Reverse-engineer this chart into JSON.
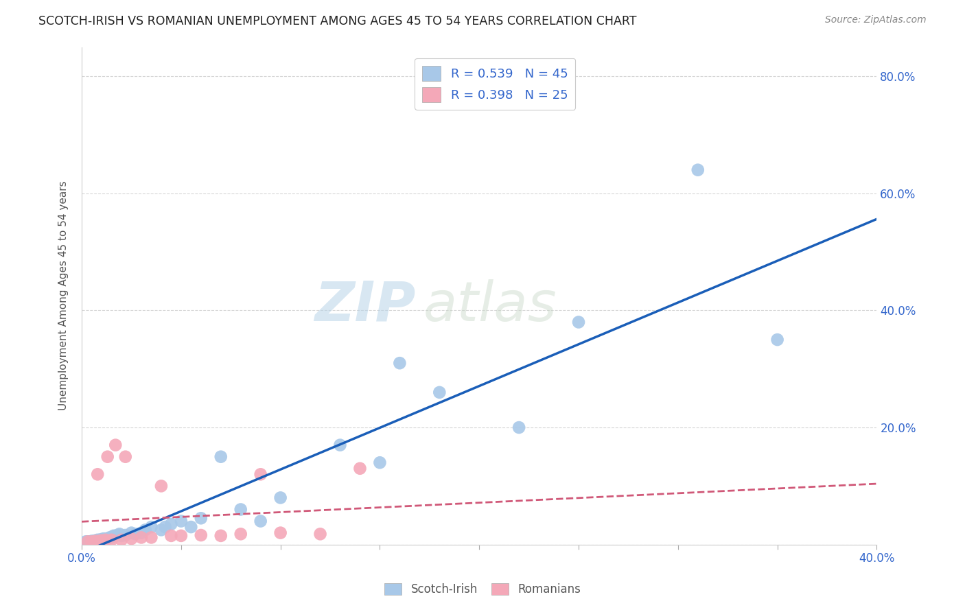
{
  "title": "SCOTCH-IRISH VS ROMANIAN UNEMPLOYMENT AMONG AGES 45 TO 54 YEARS CORRELATION CHART",
  "source": "Source: ZipAtlas.com",
  "ylabel": "Unemployment Among Ages 45 to 54 years",
  "xlim": [
    0.0,
    0.4
  ],
  "ylim": [
    0.0,
    0.85
  ],
  "yticks": [
    0.0,
    0.2,
    0.4,
    0.6,
    0.8
  ],
  "ytick_labels": [
    "",
    "20.0%",
    "40.0%",
    "60.0%",
    "80.0%"
  ],
  "xticks": [
    0.0,
    0.05,
    0.1,
    0.15,
    0.2,
    0.25,
    0.3,
    0.35,
    0.4
  ],
  "xtick_labels": [
    "0.0%",
    "",
    "",
    "",
    "",
    "",
    "",
    "",
    "40.0%"
  ],
  "scotch_irish_color": "#a8c8e8",
  "scotch_irish_line_color": "#1a5eb8",
  "romanian_color": "#f4a8b8",
  "romanian_line_color": "#d05878",
  "scotch_irish_R": 0.539,
  "scotch_irish_N": 45,
  "romanian_R": 0.398,
  "romanian_N": 25,
  "legend_text_color": "#3366cc",
  "watermark": "ZIPatlas",
  "scotch_irish_x": [
    0.002,
    0.003,
    0.004,
    0.005,
    0.006,
    0.007,
    0.008,
    0.008,
    0.009,
    0.01,
    0.01,
    0.011,
    0.012,
    0.013,
    0.014,
    0.015,
    0.016,
    0.017,
    0.018,
    0.019,
    0.02,
    0.022,
    0.025,
    0.027,
    0.03,
    0.032,
    0.035,
    0.04,
    0.042,
    0.045,
    0.05,
    0.055,
    0.06,
    0.07,
    0.08,
    0.09,
    0.1,
    0.13,
    0.15,
    0.16,
    0.18,
    0.22,
    0.25,
    0.31,
    0.35
  ],
  "scotch_irish_y": [
    0.005,
    0.005,
    0.005,
    0.006,
    0.006,
    0.007,
    0.007,
    0.008,
    0.008,
    0.005,
    0.009,
    0.01,
    0.01,
    0.01,
    0.012,
    0.012,
    0.015,
    0.015,
    0.016,
    0.018,
    0.015,
    0.016,
    0.02,
    0.018,
    0.02,
    0.025,
    0.03,
    0.025,
    0.03,
    0.035,
    0.04,
    0.03,
    0.045,
    0.15,
    0.06,
    0.04,
    0.08,
    0.17,
    0.14,
    0.31,
    0.26,
    0.2,
    0.38,
    0.64,
    0.35
  ],
  "romanian_x": [
    0.003,
    0.005,
    0.007,
    0.008,
    0.009,
    0.01,
    0.012,
    0.013,
    0.015,
    0.017,
    0.02,
    0.022,
    0.025,
    0.03,
    0.035,
    0.04,
    0.045,
    0.05,
    0.06,
    0.07,
    0.08,
    0.09,
    0.1,
    0.12,
    0.14
  ],
  "romanian_y": [
    0.005,
    0.005,
    0.006,
    0.12,
    0.006,
    0.007,
    0.008,
    0.15,
    0.008,
    0.17,
    0.008,
    0.15,
    0.01,
    0.012,
    0.012,
    0.1,
    0.015,
    0.015,
    0.016,
    0.015,
    0.018,
    0.12,
    0.02,
    0.018,
    0.13
  ]
}
